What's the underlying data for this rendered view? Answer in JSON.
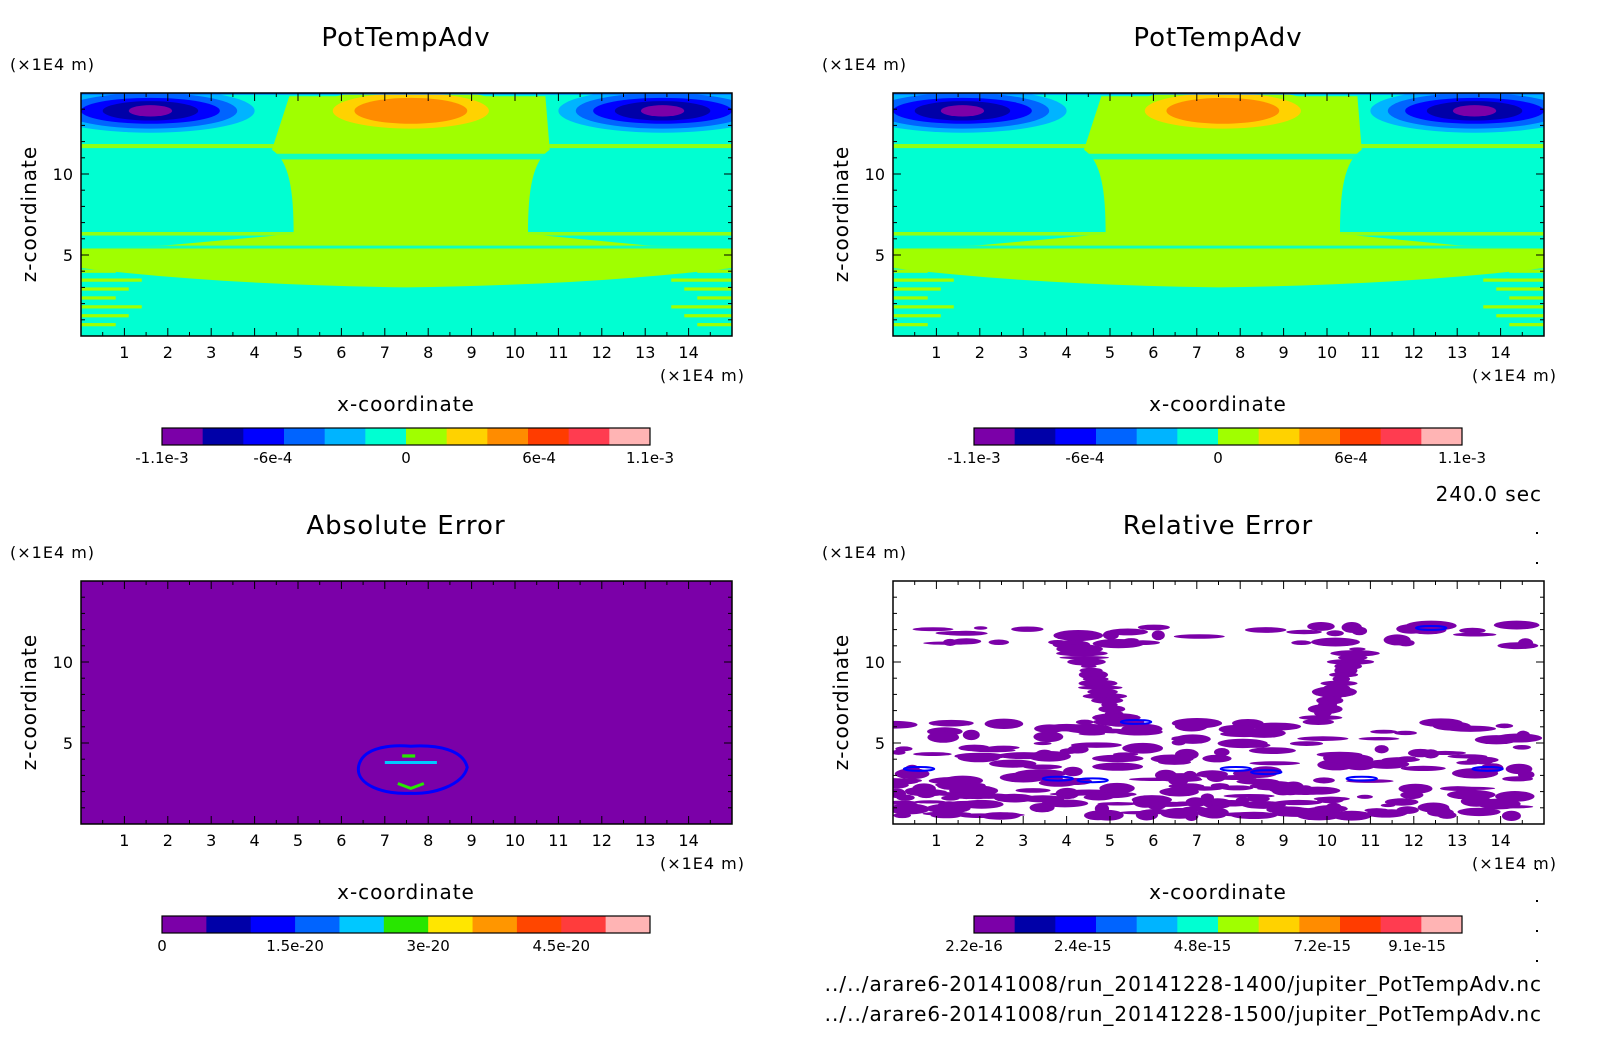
{
  "chart_data": [
    {
      "type": "heatmap",
      "title": "PotTempAdv",
      "xlabel": "x-coordinate",
      "ylabel": "z-coordinate",
      "x_unit": "(×1E4 m)",
      "y_unit": "(×1E4 m)",
      "xlim": [
        0,
        15
      ],
      "ylim": [
        0,
        15
      ],
      "x_ticks": [
        "1",
        "2",
        "3",
        "4",
        "5",
        "6",
        "7",
        "8",
        "9",
        "10",
        "11",
        "12",
        "13",
        "14"
      ],
      "y_ticks": [
        "5",
        "10"
      ],
      "field": "potential_temperature_advection",
      "colorbar": {
        "colors": [
          "#7b00a8",
          "#0000a8",
          "#0000ff",
          "#0064ff",
          "#00b4ff",
          "#00ffd2",
          "#a0ff00",
          "#ffd200",
          "#ff8c00",
          "#ff3c00",
          "#ff3c50",
          "#ffb4b4"
        ],
        "tick_labels": [
          "-1.1e-3",
          "-6e-4",
          "0",
          "6e-4",
          "1.1e-3"
        ],
        "range": [
          -0.0011,
          0.0011
        ]
      }
    },
    {
      "type": "heatmap",
      "title": "PotTempAdv",
      "xlabel": "x-coordinate",
      "ylabel": "z-coordinate",
      "x_unit": "(×1E4 m)",
      "y_unit": "(×1E4 m)",
      "xlim": [
        0,
        15
      ],
      "ylim": [
        0,
        15
      ],
      "x_ticks": [
        "1",
        "2",
        "3",
        "4",
        "5",
        "6",
        "7",
        "8",
        "9",
        "10",
        "11",
        "12",
        "13",
        "14"
      ],
      "y_ticks": [
        "5",
        "10"
      ],
      "field": "potential_temperature_advection",
      "colorbar": {
        "colors": [
          "#7b00a8",
          "#0000a8",
          "#0000ff",
          "#0064ff",
          "#00b4ff",
          "#00ffd2",
          "#a0ff00",
          "#ffd200",
          "#ff8c00",
          "#ff3c00",
          "#ff3c50",
          "#ffb4b4"
        ],
        "tick_labels": [
          "-1.1e-3",
          "-6e-4",
          "0",
          "6e-4",
          "1.1e-3"
        ],
        "range": [
          -0.0011,
          0.0011
        ]
      }
    },
    {
      "type": "heatmap",
      "title": "Absolute Error",
      "xlabel": "x-coordinate",
      "ylabel": "z-coordinate",
      "x_unit": "(×1E4 m)",
      "y_unit": "(×1E4 m)",
      "xlim": [
        0,
        15
      ],
      "ylim": [
        0,
        15
      ],
      "x_ticks": [
        "1",
        "2",
        "3",
        "4",
        "5",
        "6",
        "7",
        "8",
        "9",
        "10",
        "11",
        "12",
        "13",
        "14"
      ],
      "y_ticks": [
        "5",
        "10"
      ],
      "field": "absolute_error",
      "colorbar": {
        "colors": [
          "#7b00a8",
          "#0000a8",
          "#0000ff",
          "#0064ff",
          "#00c8ff",
          "#28e600",
          "#ffe600",
          "#ff9600",
          "#ff4600",
          "#ff3c3c",
          "#ffb4b4"
        ],
        "tick_labels": [
          "0",
          "1.5e-20",
          "3e-20",
          "4.5e-20"
        ],
        "range": [
          0,
          5.5e-20
        ]
      }
    },
    {
      "type": "heatmap",
      "title": "Relative Error",
      "xlabel": "x-coordinate",
      "ylabel": "z-coordinate",
      "x_unit": "(×1E4 m)",
      "y_unit": "(×1E4 m)",
      "xlim": [
        0,
        15
      ],
      "ylim": [
        0,
        15
      ],
      "x_ticks": [
        "1",
        "2",
        "3",
        "4",
        "5",
        "6",
        "7",
        "8",
        "9",
        "10",
        "11",
        "12",
        "13",
        "14"
      ],
      "y_ticks": [
        "5",
        "10"
      ],
      "field": "relative_error",
      "colorbar": {
        "colors": [
          "#7b00a8",
          "#0000a8",
          "#0000ff",
          "#0064ff",
          "#00b4ff",
          "#00ffd2",
          "#a0ff00",
          "#ffd200",
          "#ff8c00",
          "#ff3c00",
          "#ff3c50",
          "#ffb4b4"
        ],
        "tick_labels": [
          "2.2e-16",
          "2.4e-15",
          "4.8e-15",
          "7.2e-15",
          "9.1e-15"
        ],
        "range": [
          2.2e-16,
          1e-14
        ]
      }
    }
  ],
  "info": {
    "time": "240.0 sec",
    "file1": "../../arare6-20141008/run_20141228-1400/jupiter_PotTempAdv.nc",
    "file2": "../../arare6-20141008/run_20141228-1500/jupiter_PotTempAdv.nc"
  }
}
